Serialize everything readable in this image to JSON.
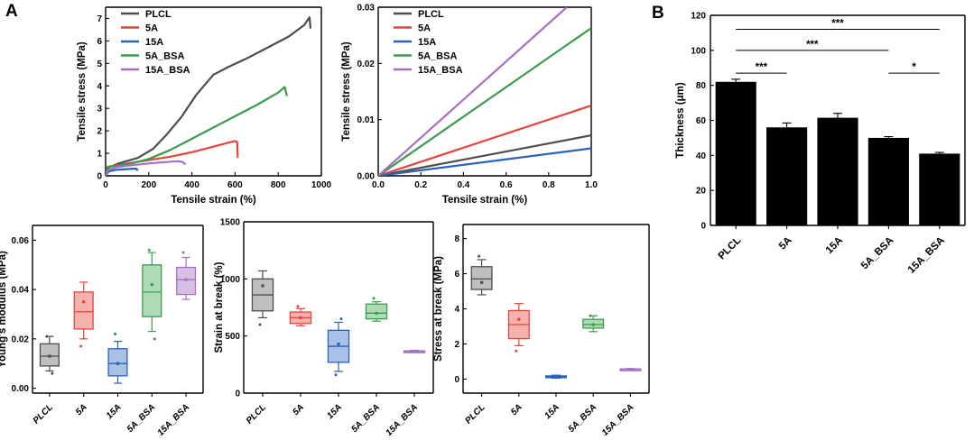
{
  "panels": {
    "a": "A",
    "b": "B"
  },
  "colors": {
    "PLCL": "#4d4d4d",
    "5A": "#e8423a",
    "15A": "#2a62b6",
    "5A_BSA": "#3a9d4d",
    "15A_BSA": "#a570c4"
  },
  "fills": {
    "PLCL": "#bfbfbf",
    "5A": "#f6b3ad",
    "15A": "#a9c1e6",
    "5A_BSA": "#aedab6",
    "15A_BSA": "#d8bfe6"
  },
  "chart_data": [
    {
      "id": "stress_strain_full",
      "type": "line",
      "xlabel": "Tensile strain (%)",
      "ylabel": "Tensile stress (MPa)",
      "xlim": [
        0,
        1000
      ],
      "ylim": [
        0,
        7.5
      ],
      "xticks": [
        "0",
        "200",
        "400",
        "600",
        "800",
        "1000"
      ],
      "yticks": [
        "0",
        "1",
        "2",
        "3",
        "4",
        "5",
        "6",
        "7"
      ],
      "legend": [
        "PLCL",
        "5A",
        "15A",
        "5A_BSA",
        "15A_BSA"
      ],
      "series": [
        {
          "name": "PLCL",
          "x": [
            0,
            10,
            60,
            150,
            220,
            280,
            350,
            420,
            500,
            570,
            650,
            750,
            850,
            920,
            945,
            950
          ],
          "y": [
            0,
            0.35,
            0.55,
            0.8,
            1.2,
            1.8,
            2.6,
            3.6,
            4.5,
            4.85,
            5.2,
            5.7,
            6.2,
            6.7,
            7.05,
            6.55
          ]
        },
        {
          "name": "5A",
          "x": [
            0,
            10,
            100,
            200,
            300,
            400,
            500,
            560,
            600,
            610,
            612
          ],
          "y": [
            0,
            0.4,
            0.55,
            0.7,
            0.85,
            1.05,
            1.3,
            1.45,
            1.55,
            1.5,
            0.8
          ]
        },
        {
          "name": "15A",
          "x": [
            0,
            15,
            50,
            100,
            140,
            150
          ],
          "y": [
            0,
            0.2,
            0.27,
            0.3,
            0.32,
            0.24
          ]
        },
        {
          "name": "5A_BSA",
          "x": [
            0,
            10,
            100,
            200,
            300,
            400,
            500,
            600,
            700,
            800,
            830,
            840
          ],
          "y": [
            0,
            0.4,
            0.5,
            0.75,
            1.15,
            1.65,
            2.15,
            2.65,
            3.15,
            3.7,
            3.95,
            3.55
          ]
        },
        {
          "name": "15A_BSA",
          "x": [
            0,
            10,
            50,
            100,
            200,
            300,
            340,
            360,
            370
          ],
          "y": [
            0,
            0.25,
            0.38,
            0.45,
            0.55,
            0.63,
            0.65,
            0.6,
            0.5
          ]
        }
      ]
    },
    {
      "id": "stress_strain_zoom",
      "type": "line",
      "xlabel": "Tensile strain (%)",
      "ylabel": "Tensile stress (MPa)",
      "xlim": [
        0,
        1.0
      ],
      "ylim": [
        0,
        0.03
      ],
      "xticks": [
        "0.0",
        "0.2",
        "0.4",
        "0.6",
        "0.8",
        "1.0"
      ],
      "yticks": [
        "0.00",
        "0.01",
        "0.02",
        "0.03"
      ],
      "legend": [
        "PLCL",
        "5A",
        "15A",
        "5A_BSA",
        "15A_BSA"
      ],
      "series": [
        {
          "name": "PLCL",
          "x": [
            0,
            1.0
          ],
          "y": [
            0,
            0.0072
          ]
        },
        {
          "name": "5A",
          "x": [
            0,
            1.0
          ],
          "y": [
            0,
            0.0125
          ]
        },
        {
          "name": "15A",
          "x": [
            0,
            1.0
          ],
          "y": [
            0,
            0.0049
          ]
        },
        {
          "name": "5A_BSA",
          "x": [
            0,
            1.0
          ],
          "y": [
            0,
            0.0263
          ]
        },
        {
          "name": "15A_BSA",
          "x": [
            0,
            0.885
          ],
          "y": [
            0,
            0.03
          ]
        }
      ]
    },
    {
      "id": "youngs_modulus",
      "type": "box",
      "ylabel": "Young's modulus (MPa)",
      "ylim": [
        -0.002,
        0.066
      ],
      "yticks": [
        "0.00",
        "0.02",
        "0.04",
        "0.06"
      ],
      "categories": [
        "PLCL",
        "5A",
        "15A",
        "5A_BSA",
        "15A_BSA"
      ],
      "boxes": [
        {
          "min": 0.007,
          "q1": 0.009,
          "median": 0.013,
          "q3": 0.018,
          "max": 0.021,
          "mean": 0.013,
          "points": [
            0.021,
            0.006
          ]
        },
        {
          "min": 0.02,
          "q1": 0.024,
          "median": 0.031,
          "q3": 0.039,
          "max": 0.043,
          "mean": 0.035,
          "points": [
            0.017
          ]
        },
        {
          "min": 0.002,
          "q1": 0.005,
          "median": 0.01,
          "q3": 0.016,
          "max": 0.019,
          "mean": 0.01,
          "points": [
            0.022
          ]
        },
        {
          "min": 0.023,
          "q1": 0.029,
          "median": 0.039,
          "q3": 0.05,
          "max": 0.055,
          "mean": 0.042,
          "points": [
            0.056,
            0.02
          ]
        },
        {
          "min": 0.036,
          "q1": 0.038,
          "median": 0.044,
          "q3": 0.049,
          "max": 0.053,
          "mean": 0.044,
          "points": [
            0.055
          ]
        }
      ]
    },
    {
      "id": "strain_at_break",
      "type": "box",
      "ylabel": "Strain at break (%)",
      "ylim": [
        0,
        1500
      ],
      "yticks": [
        "0",
        "500",
        "1000",
        "1500"
      ],
      "categories": [
        "PLCL",
        "5A",
        "15A",
        "5A_BSA",
        "15A_BSA"
      ],
      "boxes": [
        {
          "min": 660,
          "q1": 720,
          "median": 860,
          "q3": 1000,
          "max": 1070,
          "mean": 940,
          "points": [
            600
          ]
        },
        {
          "min": 590,
          "q1": 610,
          "median": 660,
          "q3": 710,
          "max": 740,
          "mean": 660,
          "points": [
            760
          ]
        },
        {
          "min": 190,
          "q1": 270,
          "median": 410,
          "q3": 550,
          "max": 620,
          "mean": 430,
          "points": [
            160,
            650
          ]
        },
        {
          "min": 630,
          "q1": 650,
          "median": 700,
          "q3": 780,
          "max": 800,
          "mean": 700,
          "points": [
            830
          ]
        },
        {
          "min": 355,
          "q1": 360,
          "median": 365,
          "q3": 370,
          "max": 375,
          "mean": 365,
          "points": []
        }
      ]
    },
    {
      "id": "stress_at_break",
      "type": "box",
      "ylabel": "Stress at break (MPa)",
      "ylim": [
        -0.8,
        8.8
      ],
      "yticks": [
        "0",
        "2",
        "4",
        "6",
        "8"
      ],
      "categories": [
        "PLCL",
        "5A",
        "15A",
        "5A_BSA",
        "15A_BSA"
      ],
      "boxes": [
        {
          "min": 4.8,
          "q1": 5.1,
          "median": 5.7,
          "q3": 6.4,
          "max": 6.8,
          "mean": 5.5,
          "points": [
            7.0
          ]
        },
        {
          "min": 1.9,
          "q1": 2.3,
          "median": 3.1,
          "q3": 3.9,
          "max": 4.3,
          "mean": 3.4,
          "points": [
            1.6
          ]
        },
        {
          "min": 0.05,
          "q1": 0.08,
          "median": 0.12,
          "q3": 0.18,
          "max": 0.22,
          "mean": 0.13,
          "points": []
        },
        {
          "min": 2.7,
          "q1": 2.9,
          "median": 3.1,
          "q3": 3.4,
          "max": 3.6,
          "mean": 3.1,
          "points": [
            3.6
          ]
        },
        {
          "min": 0.5,
          "q1": 0.52,
          "median": 0.55,
          "q3": 0.58,
          "max": 0.6,
          "mean": 0.55,
          "points": []
        }
      ]
    },
    {
      "id": "thickness",
      "type": "bar",
      "ylabel": "Thickness (μm)",
      "ylim": [
        0,
        120
      ],
      "yticks": [
        "0",
        "20",
        "40",
        "60",
        "80",
        "100",
        "120"
      ],
      "categories": [
        "PLCL",
        "5A",
        "15A",
        "5A_BSA",
        "15A_BSA"
      ],
      "values": [
        82,
        56,
        61.5,
        50,
        41
      ],
      "errors": [
        1.5,
        2.5,
        2.5,
        0.7,
        0.7
      ],
      "significance": [
        {
          "from": "PLCL",
          "to": "5A",
          "label": "***",
          "y": 87
        },
        {
          "from": "PLCL",
          "to": "5A_BSA",
          "label": "***",
          "y": 100
        },
        {
          "from": "PLCL",
          "to": "15A_BSA",
          "label": "***",
          "y": 112
        },
        {
          "from": "5A_BSA",
          "to": "15A_BSA",
          "label": "*",
          "y": 87
        }
      ]
    }
  ]
}
